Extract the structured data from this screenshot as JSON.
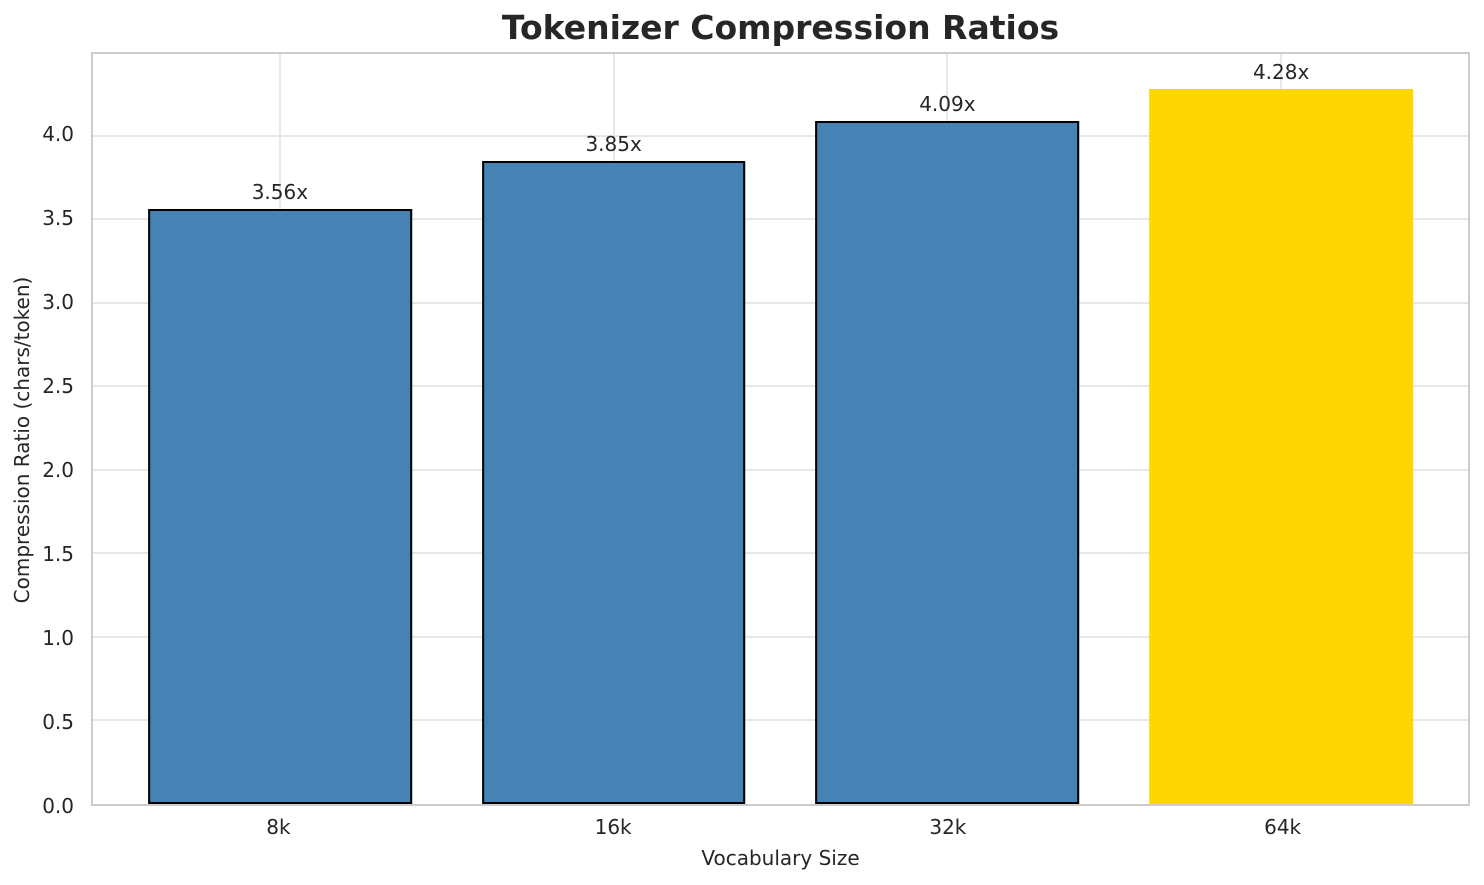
{
  "chart_data": {
    "type": "bar",
    "title": "Tokenizer Compression Ratios",
    "xlabel": "Vocabulary Size",
    "ylabel": "Compression Ratio (chars/token)",
    "categories": [
      "8k",
      "16k",
      "32k",
      "64k"
    ],
    "values": [
      3.56,
      3.85,
      4.09,
      4.28
    ],
    "bar_value_labels": [
      "3.56x",
      "3.85x",
      "4.09x",
      "4.28x"
    ],
    "bar_colors": [
      "#4682b4",
      "#4682b4",
      "#4682b4",
      "#ffd700"
    ],
    "bar_edge_colors": [
      "#000000",
      "#000000",
      "#000000",
      "none"
    ],
    "yticks": [
      0.0,
      0.5,
      1.0,
      1.5,
      2.0,
      2.5,
      3.0,
      3.5,
      4.0
    ],
    "ytick_labels": [
      "0.0",
      "0.5",
      "1.0",
      "1.5",
      "2.0",
      "2.5",
      "3.0",
      "3.5",
      "4.0"
    ],
    "ylim": [
      0,
      4.49
    ],
    "grid": true,
    "legend": null,
    "styles": {
      "background": "#ffffff",
      "spine_color": "#cccccc",
      "grid_color": "#e7e7e7",
      "text_color": "#262626",
      "highlight_color": "#ffd700",
      "base_bar_color": "#4682b4"
    }
  }
}
